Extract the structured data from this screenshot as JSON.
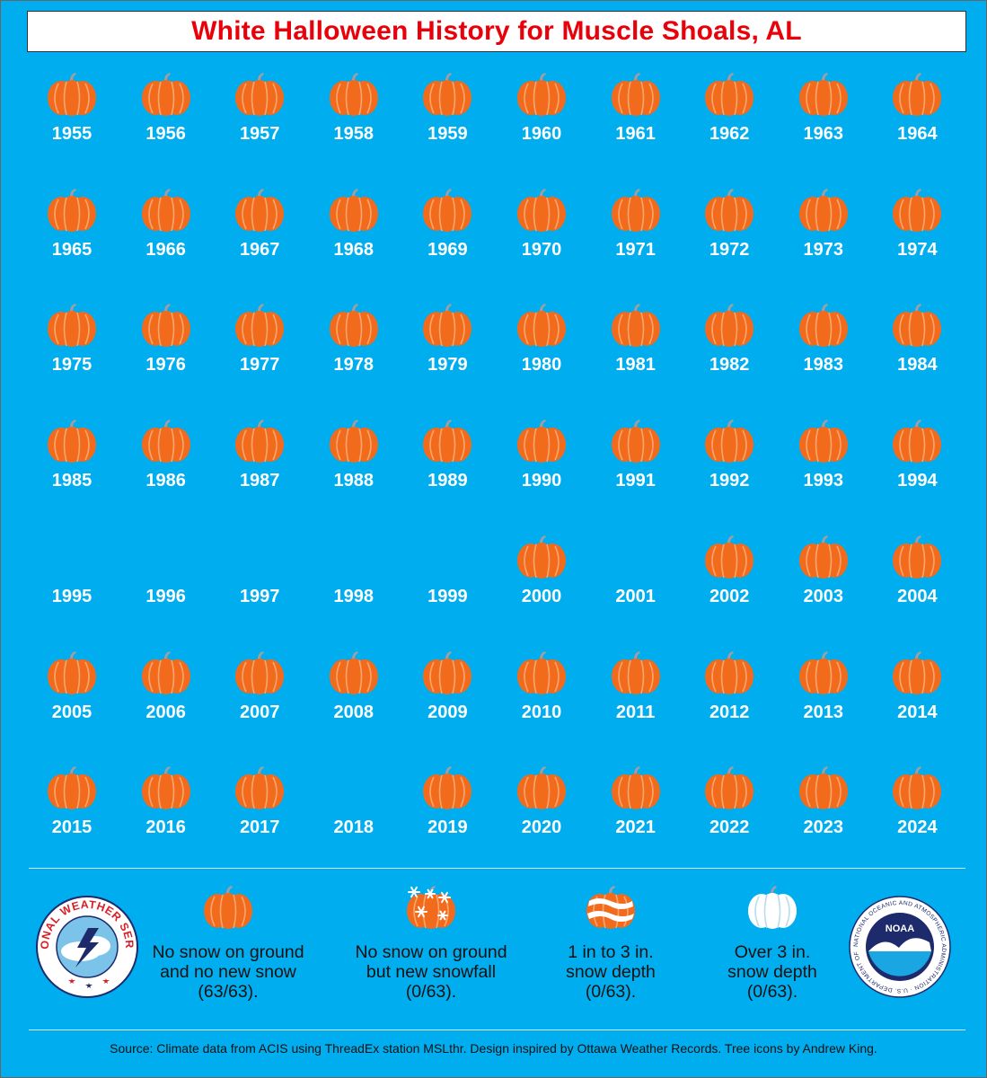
{
  "title": "White Halloween History for Muscle Shoals, AL",
  "pumpkin_icon": "pumpkin-icon",
  "colors": {
    "background": "#00adef",
    "title": "#e8000b",
    "pumpkin": "#f26b1d",
    "pumpkin_rib": "#f7a66e",
    "stem": "#9aa0a6"
  },
  "years": [
    {
      "year": "1955",
      "icon": "pumpkin"
    },
    {
      "year": "1956",
      "icon": "pumpkin"
    },
    {
      "year": "1957",
      "icon": "pumpkin"
    },
    {
      "year": "1958",
      "icon": "pumpkin"
    },
    {
      "year": "1959",
      "icon": "pumpkin"
    },
    {
      "year": "1960",
      "icon": "pumpkin"
    },
    {
      "year": "1961",
      "icon": "pumpkin"
    },
    {
      "year": "1962",
      "icon": "pumpkin"
    },
    {
      "year": "1963",
      "icon": "pumpkin"
    },
    {
      "year": "1964",
      "icon": "pumpkin"
    },
    {
      "year": "1965",
      "icon": "pumpkin"
    },
    {
      "year": "1966",
      "icon": "pumpkin"
    },
    {
      "year": "1967",
      "icon": "pumpkin"
    },
    {
      "year": "1968",
      "icon": "pumpkin"
    },
    {
      "year": "1969",
      "icon": "pumpkin"
    },
    {
      "year": "1970",
      "icon": "pumpkin"
    },
    {
      "year": "1971",
      "icon": "pumpkin"
    },
    {
      "year": "1972",
      "icon": "pumpkin"
    },
    {
      "year": "1973",
      "icon": "pumpkin"
    },
    {
      "year": "1974",
      "icon": "pumpkin"
    },
    {
      "year": "1975",
      "icon": "pumpkin"
    },
    {
      "year": "1976",
      "icon": "pumpkin"
    },
    {
      "year": "1977",
      "icon": "pumpkin"
    },
    {
      "year": "1978",
      "icon": "pumpkin"
    },
    {
      "year": "1979",
      "icon": "pumpkin"
    },
    {
      "year": "1980",
      "icon": "pumpkin"
    },
    {
      "year": "1981",
      "icon": "pumpkin"
    },
    {
      "year": "1982",
      "icon": "pumpkin"
    },
    {
      "year": "1983",
      "icon": "pumpkin"
    },
    {
      "year": "1984",
      "icon": "pumpkin"
    },
    {
      "year": "1985",
      "icon": "pumpkin"
    },
    {
      "year": "1986",
      "icon": "pumpkin"
    },
    {
      "year": "1987",
      "icon": "pumpkin"
    },
    {
      "year": "1988",
      "icon": "pumpkin"
    },
    {
      "year": "1989",
      "icon": "pumpkin"
    },
    {
      "year": "1990",
      "icon": "pumpkin"
    },
    {
      "year": "1991",
      "icon": "pumpkin"
    },
    {
      "year": "1992",
      "icon": "pumpkin"
    },
    {
      "year": "1993",
      "icon": "pumpkin"
    },
    {
      "year": "1994",
      "icon": "pumpkin"
    },
    {
      "year": "1995",
      "icon": "none"
    },
    {
      "year": "1996",
      "icon": "none"
    },
    {
      "year": "1997",
      "icon": "none"
    },
    {
      "year": "1998",
      "icon": "none"
    },
    {
      "year": "1999",
      "icon": "none"
    },
    {
      "year": "2000",
      "icon": "pumpkin"
    },
    {
      "year": "2001",
      "icon": "none"
    },
    {
      "year": "2002",
      "icon": "pumpkin"
    },
    {
      "year": "2003",
      "icon": "pumpkin"
    },
    {
      "year": "2004",
      "icon": "pumpkin"
    },
    {
      "year": "2005",
      "icon": "pumpkin"
    },
    {
      "year": "2006",
      "icon": "pumpkin"
    },
    {
      "year": "2007",
      "icon": "pumpkin"
    },
    {
      "year": "2008",
      "icon": "pumpkin"
    },
    {
      "year": "2009",
      "icon": "pumpkin"
    },
    {
      "year": "2010",
      "icon": "pumpkin"
    },
    {
      "year": "2011",
      "icon": "pumpkin"
    },
    {
      "year": "2012",
      "icon": "pumpkin"
    },
    {
      "year": "2013",
      "icon": "pumpkin"
    },
    {
      "year": "2014",
      "icon": "pumpkin"
    },
    {
      "year": "2015",
      "icon": "pumpkin"
    },
    {
      "year": "2016",
      "icon": "pumpkin"
    },
    {
      "year": "2017",
      "icon": "pumpkin"
    },
    {
      "year": "2018",
      "icon": "none"
    },
    {
      "year": "2019",
      "icon": "pumpkin"
    },
    {
      "year": "2020",
      "icon": "pumpkin"
    },
    {
      "year": "2021",
      "icon": "pumpkin"
    },
    {
      "year": "2022",
      "icon": "pumpkin"
    },
    {
      "year": "2023",
      "icon": "pumpkin"
    },
    {
      "year": "2024",
      "icon": "pumpkin"
    }
  ],
  "legend": [
    {
      "icon": "pumpkin-icon",
      "text": "No snow on ground and no new snow (63/63)."
    },
    {
      "icon": "snowflake-pumpkin-icon",
      "text": "No snow on ground but new snowfall (0/63)."
    },
    {
      "icon": "striped-snow-pumpkin-icon",
      "text": "1 in to 3 in. snow depth (0/63)."
    },
    {
      "icon": "white-pumpkin-icon",
      "text": "Over 3 in. snow depth (0/63)."
    }
  ],
  "logos": {
    "nws_top": "NATIONAL WEATHER SERVICE",
    "noaa_center": "NOAA",
    "noaa_ring": "NATIONAL OCEANIC AND ATMOSPHERIC ADMINISTRATION · U.S. DEPARTMENT OF COMMERCE"
  },
  "source": "Source: Climate data from ACIS using ThreadEx station MSLthr. Design inspired by Ottawa Weather Records. Tree icons by Andrew King."
}
